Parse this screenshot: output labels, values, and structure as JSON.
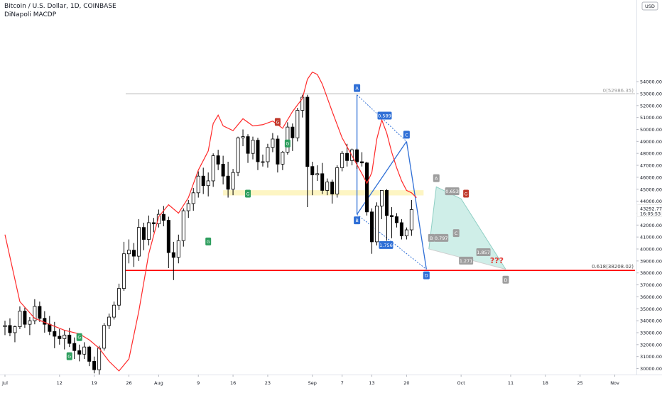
{
  "header": {
    "title": "Bitcoin / U.S. Dollar, 1D, COINBASE",
    "indicator": "DiNapoli MACDP"
  },
  "price_scale": {
    "currency": "USD",
    "current_price": "43292.77",
    "countdown": "16:05:53"
  },
  "colors": {
    "up": "#ffffff",
    "down": "#000000",
    "wick": "#000000",
    "macdp_line": "#ff2a2a",
    "support_line": "#ff0000",
    "zone": "#fdf3b8",
    "pattern_blue": "#2f6fd6",
    "pattern_fill": "#bfe8e0",
    "marker_green": "#2e9e5e",
    "marker_red": "#c0392b",
    "label_gray": "#9e9e9e"
  },
  "chart_data": {
    "type": "candlestick",
    "start_date": "2021-07-01",
    "ylim": [
      29500,
      54500
    ],
    "x_ticks": [
      "Jul",
      "12",
      "19",
      "26",
      "Aug",
      "9",
      "16",
      "23",
      "Sep",
      "7",
      "13",
      "20",
      "Oct",
      "11",
      "18",
      "25",
      "Nov"
    ],
    "x_tick_dates": [
      "2021-07-01",
      "2021-07-12",
      "2021-07-19",
      "2021-07-26",
      "2021-08-01",
      "2021-08-09",
      "2021-08-16",
      "2021-08-23",
      "2021-09-01",
      "2021-09-07",
      "2021-09-13",
      "2021-09-20",
      "2021-10-01",
      "2021-10-11",
      "2021-10-18",
      "2021-10-25",
      "2021-11-01"
    ],
    "y_ticks": [
      30000,
      31000,
      32000,
      33000,
      34000,
      35000,
      36000,
      37000,
      38000,
      39000,
      40000,
      41000,
      42000,
      43000,
      44000,
      45000,
      46000,
      47000,
      48000,
      49000,
      50000,
      51000,
      52000,
      53000,
      54000
    ],
    "ohlc": [
      [
        33500,
        34000,
        32800,
        33600
      ],
      [
        33600,
        34200,
        32700,
        33000
      ],
      [
        33000,
        33600,
        32200,
        33500
      ],
      [
        33500,
        35200,
        33300,
        34800
      ],
      [
        34800,
        35100,
        33400,
        33700
      ],
      [
        33700,
        34300,
        32800,
        34000
      ],
      [
        34000,
        35800,
        33700,
        35200
      ],
      [
        35200,
        35600,
        33900,
        34200
      ],
      [
        34200,
        34800,
        33000,
        33700
      ],
      [
        33700,
        34400,
        32800,
        33100
      ],
      [
        33100,
        33900,
        31700,
        32700
      ],
      [
        32700,
        33300,
        32000,
        32500
      ],
      [
        32500,
        33200,
        31600,
        32800
      ],
      [
        32800,
        33400,
        31800,
        32100
      ],
      [
        32100,
        32600,
        30800,
        31500
      ],
      [
        31500,
        32000,
        30600,
        31200
      ],
      [
        31200,
        32200,
        30800,
        31800
      ],
      [
        31800,
        31900,
        30200,
        30600
      ],
      [
        30600,
        31000,
        29600,
        29900
      ],
      [
        29900,
        31900,
        29500,
        31700
      ],
      [
        31700,
        33800,
        31500,
        33600
      ],
      [
        33600,
        34600,
        33300,
        34300
      ],
      [
        34300,
        35600,
        34100,
        35300
      ],
      [
        35300,
        37100,
        34900,
        36700
      ],
      [
        36700,
        40600,
        36500,
        39600
      ],
      [
        39600,
        40800,
        38800,
        39900
      ],
      [
        39900,
        40500,
        38500,
        39400
      ],
      [
        39400,
        42500,
        39000,
        41800
      ],
      [
        41800,
        42200,
        39900,
        40800
      ],
      [
        40800,
        42800,
        40300,
        42200
      ],
      [
        42200,
        42600,
        41400,
        42100
      ],
      [
        42100,
        43300,
        41800,
        42900
      ],
      [
        42900,
        43600,
        41900,
        42400
      ],
      [
        42400,
        42700,
        38400,
        39700
      ],
      [
        39700,
        40600,
        37400,
        39300
      ],
      [
        39300,
        41200,
        38800,
        40700
      ],
      [
        40700,
        43400,
        40200,
        43200
      ],
      [
        43200,
        44100,
        42600,
        43800
      ],
      [
        43800,
        45100,
        43200,
        44700
      ],
      [
        44700,
        46500,
        44300,
        46100
      ],
      [
        46100,
        46800,
        44600,
        45300
      ],
      [
        45300,
        46400,
        44400,
        45700
      ],
      [
        45700,
        48000,
        45200,
        47800
      ],
      [
        47800,
        48300,
        46600,
        47100
      ],
      [
        47100,
        47800,
        45400,
        46100
      ],
      [
        46100,
        47300,
        44300,
        45000
      ],
      [
        45000,
        46700,
        44500,
        46400
      ],
      [
        46400,
        49400,
        46100,
        49300
      ],
      [
        49300,
        50000,
        48600,
        49400
      ],
      [
        49400,
        49600,
        47200,
        48000
      ],
      [
        48000,
        49400,
        47500,
        49100
      ],
      [
        49100,
        49300,
        46600,
        47300
      ],
      [
        47300,
        47900,
        46900,
        47300
      ],
      [
        47300,
        48800,
        46800,
        48500
      ],
      [
        48500,
        49700,
        48100,
        49200
      ],
      [
        49200,
        49500,
        46400,
        47100
      ],
      [
        47100,
        48200,
        46600,
        48100
      ],
      [
        48100,
        50600,
        47900,
        50200
      ],
      [
        50200,
        50500,
        48200,
        49300
      ],
      [
        49300,
        51800,
        49000,
        51600
      ],
      [
        51600,
        52900,
        51000,
        52700
      ],
      [
        52700,
        52900,
        43500,
        46900
      ],
      [
        46900,
        47300,
        44500,
        46200
      ],
      [
        46200,
        47000,
        45700,
        46300
      ],
      [
        46300,
        47200,
        44600,
        44900
      ],
      [
        44900,
        45900,
        44500,
        45600
      ],
      [
        45600,
        45800,
        43800,
        44600
      ],
      [
        44600,
        47000,
        44300,
        46800
      ],
      [
        46800,
        48200,
        46500,
        48000
      ],
      [
        48000,
        48800,
        46900,
        47400
      ],
      [
        47400,
        48400,
        47000,
        48300
      ],
      [
        48300,
        48400,
        46700,
        47300
      ],
      [
        47300,
        48100,
        46900,
        47200
      ],
      [
        47200,
        47300,
        42800,
        43100
      ],
      [
        43100,
        43400,
        39600,
        40600
      ],
      [
        40600,
        43900,
        40300,
        43600
      ],
      [
        43600,
        44900,
        42500,
        44900
      ],
      [
        44900,
        45000,
        40700,
        42800
      ],
      [
        42800,
        43500,
        40900,
        42700
      ],
      [
        42700,
        43000,
        41800,
        42200
      ],
      [
        42200,
        42500,
        40800,
        41100
      ],
      [
        41100,
        41800,
        40800,
        41600
      ],
      [
        41600,
        44100,
        41100,
        43300
      ]
    ],
    "macdp_line": [
      [
        0,
        41200
      ],
      [
        3,
        35600
      ],
      [
        6,
        34200
      ],
      [
        9,
        33700
      ],
      [
        12,
        33200
      ],
      [
        15,
        32900
      ],
      [
        17,
        32400
      ],
      [
        19,
        31700
      ],
      [
        21,
        30600
      ],
      [
        23,
        29800
      ],
      [
        25,
        30800
      ],
      [
        27,
        34800
      ],
      [
        29,
        39600
      ],
      [
        31,
        42700
      ],
      [
        33,
        43700
      ],
      [
        35,
        43000
      ],
      [
        37,
        44300
      ],
      [
        39,
        46600
      ],
      [
        41,
        48200
      ],
      [
        42,
        50500
      ],
      [
        43,
        51200
      ],
      [
        44,
        50300
      ],
      [
        46,
        49900
      ],
      [
        48,
        50900
      ],
      [
        50,
        50300
      ],
      [
        52,
        50400
      ],
      [
        54,
        50700
      ],
      [
        56,
        50100
      ],
      [
        58,
        51500
      ],
      [
        60,
        52600
      ],
      [
        61,
        54200
      ],
      [
        62,
        54800
      ],
      [
        63,
        54600
      ],
      [
        64,
        53800
      ],
      [
        66,
        51500
      ],
      [
        68,
        49300
      ],
      [
        70,
        47800
      ],
      [
        72,
        46300
      ],
      [
        73,
        45500
      ],
      [
        74,
        46400
      ],
      [
        75,
        49200
      ],
      [
        76,
        50800
      ],
      [
        77,
        49700
      ],
      [
        78,
        48100
      ],
      [
        79,
        46800
      ],
      [
        80,
        45700
      ],
      [
        81,
        44900
      ],
      [
        82,
        44700
      ],
      [
        83,
        44300
      ]
    ],
    "fib_level": {
      "label": "0.618(38208.02)",
      "value": 38208.02
    },
    "upper_level": {
      "label": "0(52986.35)",
      "value": 52986.35
    },
    "yellow_zone": [
      44600,
      44800
    ],
    "pattern_points": [
      {
        "label": "A",
        "value": 52900
      },
      {
        "label": "B",
        "value": 42900
      },
      {
        "label": "C",
        "value": 49000
      },
      {
        "label": "D",
        "value": 38300
      }
    ],
    "pattern_ratios": [
      "0.589",
      "1.756"
    ],
    "projection_points": [
      "A",
      "B",
      "C",
      "D"
    ],
    "projection_ratios": [
      "0.653",
      "0.797",
      "1.271",
      "1.857"
    ],
    "annotation": "???",
    "markers_green": [
      "G",
      "G",
      "G",
      "G",
      "G"
    ],
    "markers_red": [
      "G",
      "G"
    ]
  }
}
